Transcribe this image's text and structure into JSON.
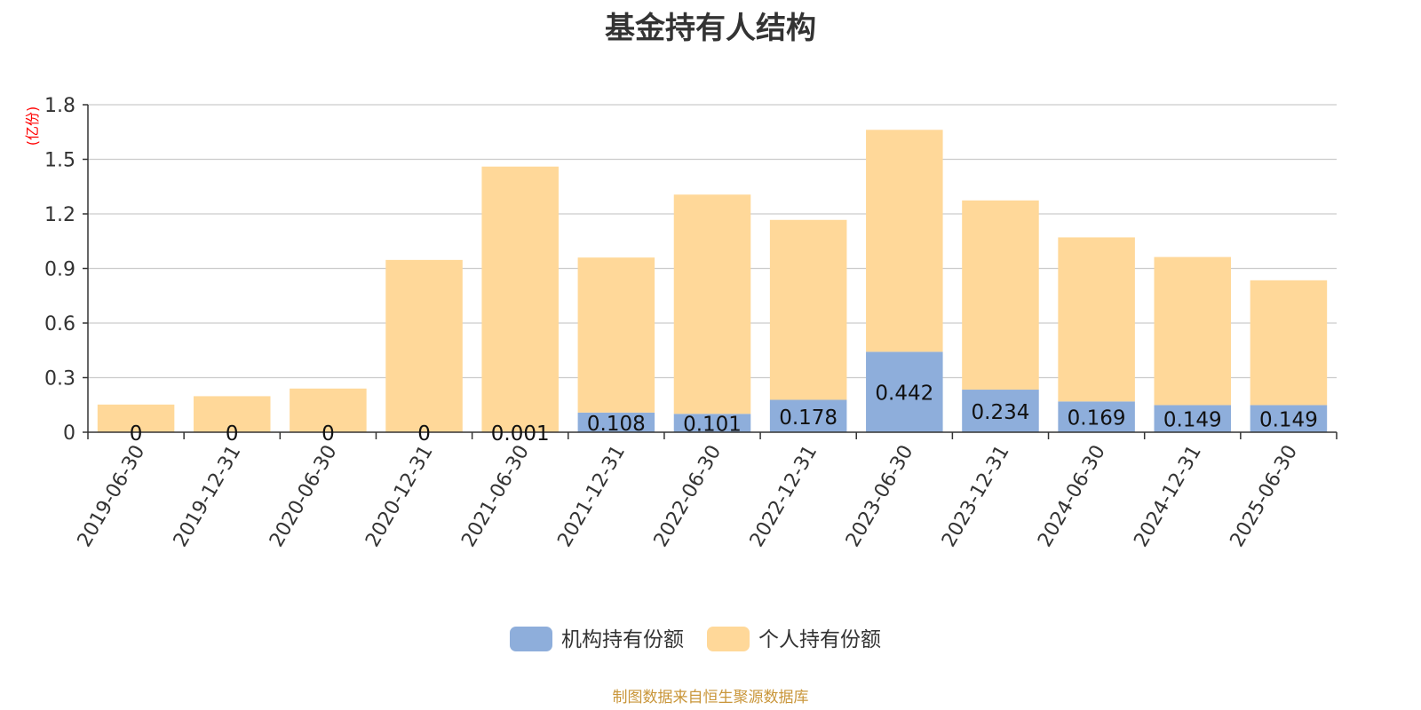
{
  "chart_data": {
    "type": "bar",
    "stacked": true,
    "title": "基金持有人结构",
    "ylabel": "(亿份)",
    "xlabel": "",
    "ylim": [
      0,
      1.8
    ],
    "yticks": [
      "0",
      "0.3",
      "0.6",
      "0.9",
      "1.2",
      "1.5",
      "1.8"
    ],
    "grid": true,
    "legend_position": "bottom-center",
    "categories": [
      "2019-06-30",
      "2019-12-31",
      "2020-06-30",
      "2020-12-31",
      "2021-06-30",
      "2021-12-31",
      "2022-06-30",
      "2022-12-31",
      "2023-06-30",
      "2023-12-31",
      "2024-06-30",
      "2024-12-31",
      "2025-06-30"
    ],
    "series": [
      {
        "name": "机构持有份额",
        "color": "#8eaedb",
        "values": [
          0,
          0,
          0,
          0,
          0.001,
          0.108,
          0.101,
          0.178,
          0.442,
          0.234,
          0.169,
          0.149,
          0.149
        ],
        "labels": [
          "0",
          "0",
          "0",
          "0",
          "0.001",
          "0.108",
          "0.101",
          "0.178",
          "0.442",
          "0.234",
          "0.169",
          "0.149",
          "0.149"
        ]
      },
      {
        "name": "个人持有份额",
        "color": "#ffd899",
        "values": [
          0.152,
          0.198,
          0.24,
          0.947,
          1.459,
          0.852,
          1.205,
          0.989,
          1.22,
          1.04,
          0.902,
          0.814,
          0.686
        ]
      }
    ]
  },
  "source_note": "制图数据来自恒生聚源数据库"
}
